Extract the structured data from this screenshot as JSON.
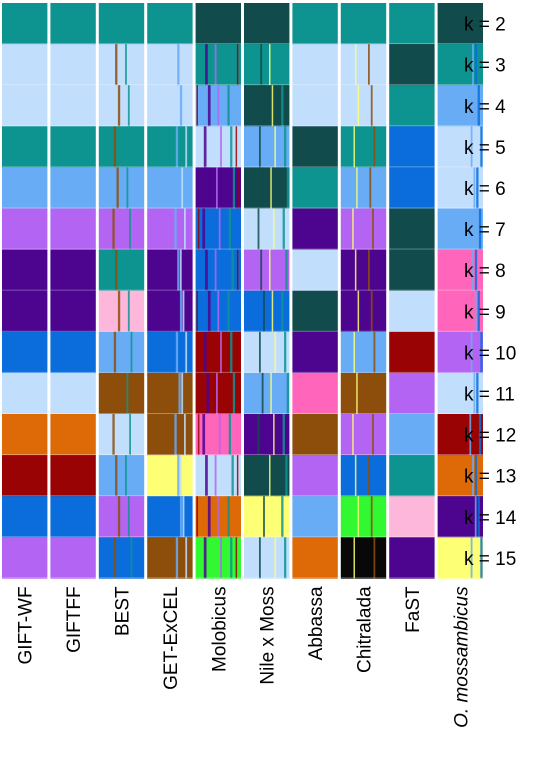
{
  "chart_data": {
    "type": "heatmap",
    "title": "",
    "xlabel": "",
    "ylabel": "",
    "grid": false,
    "colors": {
      "A": "#0e9490",
      "B": "#c1defd",
      "C": "#114b4b",
      "D": "#68acf6",
      "E": "#b464f2",
      "F": "#4d048f",
      "G": "#fdb7db",
      "H": "#0b6ddc",
      "I": "#8d4e0b",
      "J": "#dd6a06",
      "K": "#990304",
      "L": "#fdff74",
      "M": "#32f832",
      "N": "#080808",
      "O": "#ff66bb"
    },
    "populations": [
      {
        "label": "GIFT-WF",
        "italic_part": ""
      },
      {
        "label": "GIFTFF",
        "italic_part": ""
      },
      {
        "label": "BEST",
        "italic_part": ""
      },
      {
        "label": "GET-ExCEL",
        "italic_part": ""
      },
      {
        "label": "Molobicus",
        "italic_part": ""
      },
      {
        "label": "Nile x Moss",
        "italic_part": ""
      },
      {
        "label": "Abbassa",
        "italic_part": ""
      },
      {
        "label": "Chitralada",
        "italic_part": ""
      },
      {
        "label": "FaST",
        "italic_part": ""
      },
      {
        "label": " mossambicus",
        "italic_part": "O."
      }
    ],
    "k_labels": [
      "k = 2",
      "k = 3",
      "k = 4",
      "k = 5",
      "k = 6",
      "k = 7",
      "k = 8",
      "k = 9",
      "k = 10",
      "k = 11",
      "k = 12",
      "k = 13",
      "k = 14",
      "k = 15"
    ],
    "cells": [
      [
        "A",
        "A",
        "A",
        "A",
        "C",
        "C",
        "A",
        "A",
        "A",
        "C"
      ],
      [
        "B",
        "B",
        "B",
        "B",
        "A",
        "A",
        "B",
        "B",
        "C",
        "A"
      ],
      [
        "B",
        "B",
        "B",
        "B",
        "D",
        "C",
        "B",
        "B",
        "A",
        "D"
      ],
      [
        "A",
        "A",
        "A",
        "A",
        "B",
        "D",
        "C",
        "A",
        "H",
        "B"
      ],
      [
        "D",
        "D",
        "D",
        "D",
        "F",
        "C",
        "A",
        "D",
        "H",
        "B"
      ],
      [
        "E",
        "E",
        "E",
        "E",
        "H",
        "B",
        "F",
        "E",
        "C",
        "D"
      ],
      [
        "F",
        "F",
        "A",
        "F",
        "H",
        "E",
        "B",
        "F",
        "C",
        "O"
      ],
      [
        "F",
        "F",
        "G",
        "F",
        "H",
        "H",
        "C",
        "F",
        "B",
        "O"
      ],
      [
        "H",
        "H",
        "D",
        "H",
        "K",
        "B",
        "F",
        "D",
        "K",
        "E"
      ],
      [
        "B",
        "B",
        "I",
        "I",
        "K",
        "D",
        "O",
        "I",
        "E",
        "B"
      ],
      [
        "J",
        "J",
        "B",
        "I",
        "O",
        "F",
        "I",
        "E",
        "D",
        "K"
      ],
      [
        "K",
        "K",
        "D",
        "L",
        "B",
        "C",
        "E",
        "H",
        "A",
        "J"
      ],
      [
        "H",
        "H",
        "E",
        "H",
        "J",
        "L",
        "D",
        "M",
        "G",
        "F"
      ],
      [
        "E",
        "E",
        "H",
        "I",
        "M",
        "B",
        "J",
        "N",
        "F",
        "L"
      ]
    ],
    "stripes": {
      "4": [
        [
          "F",
          0.15,
          0.06
        ],
        [
          "E",
          0.42,
          0.04
        ],
        [
          "A",
          0.7,
          0.05
        ],
        [
          "K",
          0.88,
          0.03
        ]
      ],
      "5": [
        [
          "C",
          0.3,
          0.04
        ],
        [
          "L",
          0.55,
          0.03
        ],
        [
          "A",
          0.82,
          0.05
        ]
      ],
      "9": [
        [
          "D",
          0.7,
          0.04
        ],
        [
          "H",
          0.82,
          0.05
        ]
      ],
      "3": [
        [
          "D",
          0.6,
          0.05
        ],
        [
          "B",
          0.72,
          0.04
        ]
      ],
      "2": [
        [
          "I",
          0.3,
          0.05
        ],
        [
          "A",
          0.58,
          0.04
        ]
      ],
      "7": [
        [
          "L",
          0.25,
          0.03
        ],
        [
          "I",
          0.6,
          0.04
        ]
      ]
    }
  }
}
